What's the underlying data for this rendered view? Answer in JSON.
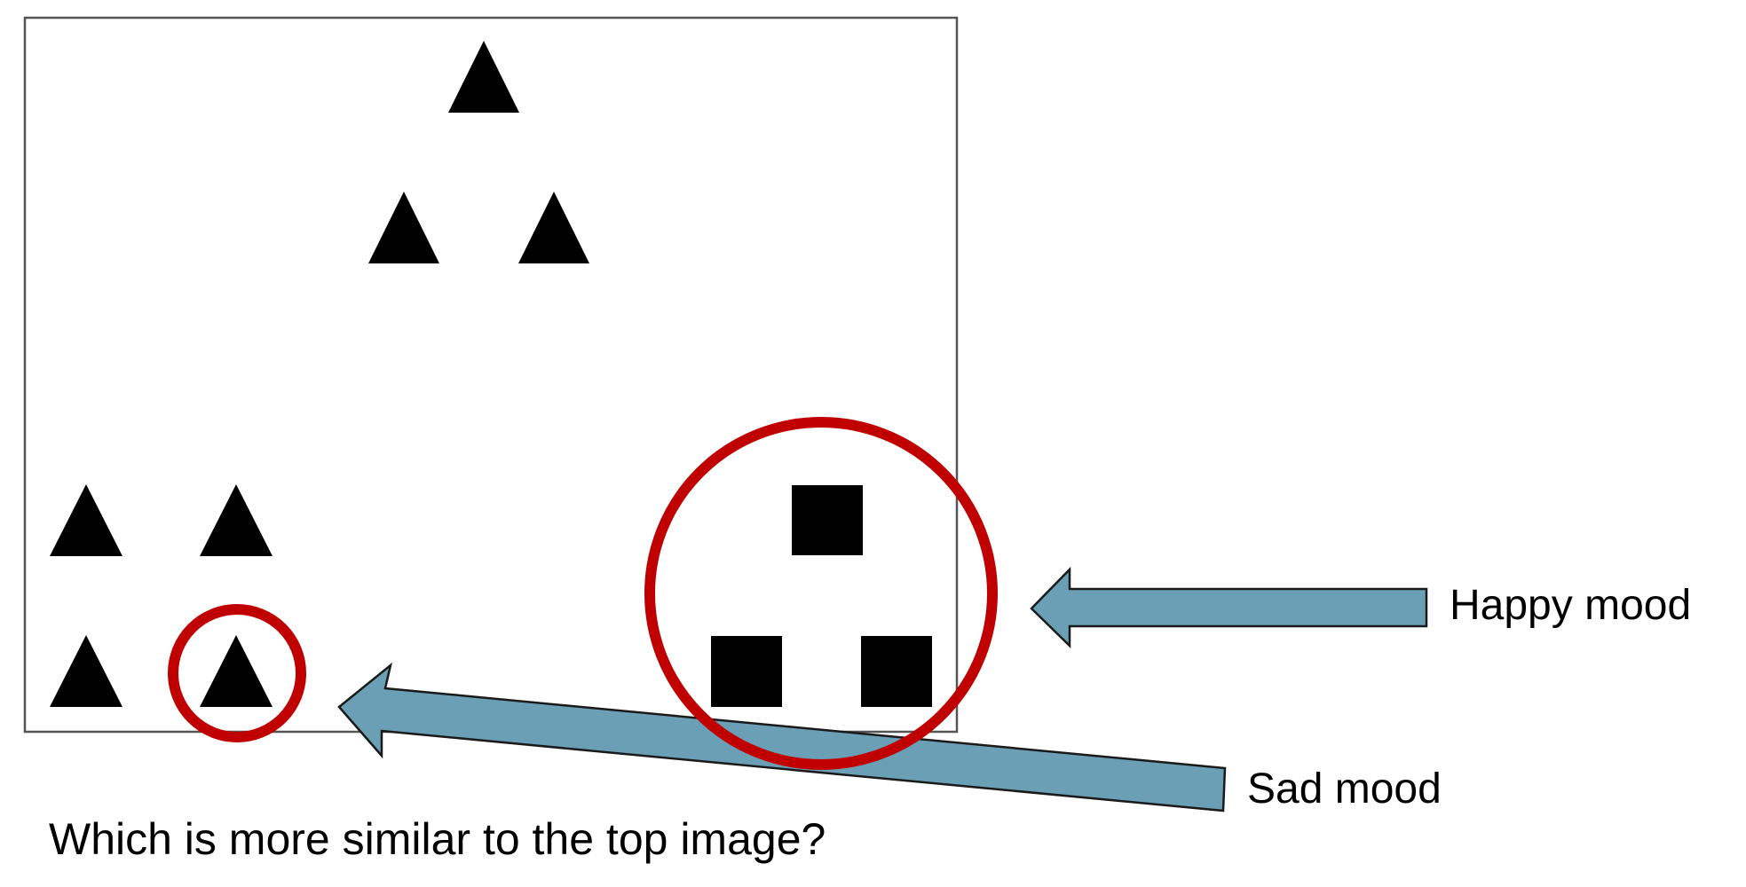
{
  "annotations": {
    "happy_label": "Happy mood",
    "sad_label": "Sad mood"
  },
  "question": "Which is more similar to the top image?",
  "colors": {
    "arrow_fill": "#6a9fb5",
    "circle_stroke": "#c00000",
    "shape_fill": "#000000",
    "frame_stroke": "#555555"
  }
}
